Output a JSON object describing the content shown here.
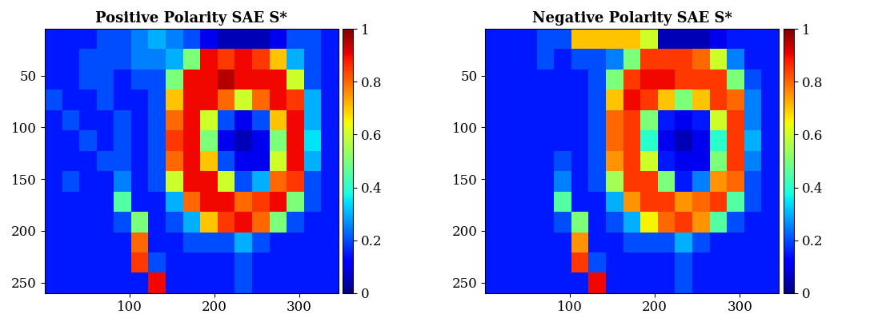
{
  "chart_data": [
    {
      "type": "heatmap",
      "title": "Positive Polarity SAE S*",
      "xlim": [
        0,
        346
      ],
      "ylim": [
        260,
        5
      ],
      "xticks": [
        100,
        200,
        300
      ],
      "yticks": [
        50,
        100,
        150,
        200,
        250
      ],
      "colorbar_range": [
        0,
        1
      ],
      "colorbar_ticks": [
        0,
        0.2,
        0.4,
        0.6,
        0.8,
        1
      ],
      "cells": [
        [
          0.15,
          0.15,
          0.15,
          0.2,
          0.2,
          0.25,
          0.3,
          0.25,
          0.2,
          0.1,
          0.05,
          0.05,
          0.05,
          0.1,
          0.2,
          0.2,
          0.15
        ],
        [
          0.15,
          0.15,
          0.2,
          0.2,
          0.2,
          0.25,
          0.25,
          0.3,
          0.5,
          0.9,
          0.85,
          0.9,
          0.85,
          0.7,
          0.3,
          0.2,
          0.15
        ],
        [
          0.15,
          0.15,
          0.2,
          0.2,
          0.15,
          0.2,
          0.2,
          0.5,
          0.9,
          0.9,
          0.95,
          0.9,
          0.9,
          0.9,
          0.6,
          0.2,
          0.15
        ],
        [
          0.2,
          0.15,
          0.15,
          0.2,
          0.15,
          0.15,
          0.2,
          0.7,
          0.9,
          0.9,
          0.8,
          0.6,
          0.8,
          0.9,
          0.85,
          0.3,
          0.15
        ],
        [
          0.15,
          0.2,
          0.15,
          0.15,
          0.2,
          0.15,
          0.2,
          0.8,
          0.9,
          0.6,
          0.2,
          0.1,
          0.2,
          0.7,
          0.9,
          0.3,
          0.15
        ],
        [
          0.15,
          0.15,
          0.2,
          0.15,
          0.2,
          0.15,
          0.2,
          0.85,
          0.9,
          0.5,
          0.1,
          0.05,
          0.1,
          0.5,
          0.9,
          0.35,
          0.15
        ],
        [
          0.15,
          0.15,
          0.15,
          0.2,
          0.2,
          0.15,
          0.2,
          0.8,
          0.9,
          0.7,
          0.2,
          0.1,
          0.1,
          0.6,
          0.9,
          0.3,
          0.15
        ],
        [
          0.15,
          0.2,
          0.15,
          0.15,
          0.25,
          0.15,
          0.2,
          0.6,
          0.9,
          0.9,
          0.6,
          0.2,
          0.3,
          0.8,
          0.85,
          0.2,
          0.15
        ],
        [
          0.15,
          0.15,
          0.15,
          0.15,
          0.45,
          0.15,
          0.15,
          0.3,
          0.8,
          0.9,
          0.9,
          0.8,
          0.85,
          0.9,
          0.5,
          0.2,
          0.15
        ],
        [
          0.15,
          0.15,
          0.15,
          0.15,
          0.2,
          0.5,
          0.15,
          0.2,
          0.3,
          0.7,
          0.85,
          0.9,
          0.8,
          0.5,
          0.2,
          0.15,
          0.15
        ],
        [
          0.15,
          0.15,
          0.15,
          0.15,
          0.15,
          0.8,
          0.15,
          0.15,
          0.2,
          0.2,
          0.2,
          0.3,
          0.2,
          0.15,
          0.15,
          0.15,
          0.15
        ],
        [
          0.15,
          0.15,
          0.15,
          0.15,
          0.15,
          0.85,
          0.2,
          0.15,
          0.15,
          0.15,
          0.15,
          0.2,
          0.15,
          0.15,
          0.15,
          0.15,
          0.15
        ],
        [
          0.15,
          0.15,
          0.15,
          0.15,
          0.15,
          0.15,
          0.9,
          0.15,
          0.15,
          0.15,
          0.15,
          0.2,
          0.15,
          0.15,
          0.15,
          0.15,
          0.15
        ]
      ]
    },
    {
      "type": "heatmap",
      "title": "Negative Polarity SAE S*",
      "xlim": [
        0,
        346
      ],
      "ylim": [
        260,
        5
      ],
      "xticks": [
        100,
        200,
        300
      ],
      "yticks": [
        50,
        100,
        150,
        200,
        250
      ],
      "colorbar_range": [
        0,
        1
      ],
      "colorbar_ticks": [
        0,
        0.2,
        0.4,
        0.6,
        0.8,
        1
      ],
      "cells": [
        [
          0.15,
          0.15,
          0.15,
          0.2,
          0.2,
          0.7,
          0.7,
          0.7,
          0.7,
          0.6,
          0.05,
          0.05,
          0.05,
          0.1,
          0.15,
          0.15,
          0.15
        ],
        [
          0.15,
          0.15,
          0.15,
          0.2,
          0.15,
          0.2,
          0.2,
          0.25,
          0.5,
          0.85,
          0.85,
          0.85,
          0.8,
          0.6,
          0.25,
          0.15,
          0.15
        ],
        [
          0.15,
          0.15,
          0.15,
          0.15,
          0.15,
          0.15,
          0.2,
          0.5,
          0.85,
          0.9,
          0.9,
          0.85,
          0.85,
          0.85,
          0.5,
          0.2,
          0.15
        ],
        [
          0.15,
          0.15,
          0.15,
          0.15,
          0.15,
          0.15,
          0.2,
          0.7,
          0.9,
          0.85,
          0.7,
          0.5,
          0.7,
          0.85,
          0.8,
          0.25,
          0.15
        ],
        [
          0.15,
          0.15,
          0.15,
          0.15,
          0.15,
          0.15,
          0.2,
          0.8,
          0.85,
          0.5,
          0.15,
          0.1,
          0.15,
          0.6,
          0.85,
          0.25,
          0.15
        ],
        [
          0.15,
          0.15,
          0.15,
          0.15,
          0.15,
          0.15,
          0.2,
          0.8,
          0.85,
          0.4,
          0.1,
          0.05,
          0.1,
          0.4,
          0.85,
          0.3,
          0.15
        ],
        [
          0.15,
          0.15,
          0.15,
          0.15,
          0.2,
          0.15,
          0.2,
          0.75,
          0.85,
          0.6,
          0.15,
          0.1,
          0.1,
          0.5,
          0.85,
          0.25,
          0.15
        ],
        [
          0.15,
          0.15,
          0.15,
          0.15,
          0.25,
          0.15,
          0.2,
          0.55,
          0.85,
          0.85,
          0.5,
          0.15,
          0.25,
          0.75,
          0.8,
          0.2,
          0.15
        ],
        [
          0.15,
          0.15,
          0.15,
          0.15,
          0.45,
          0.15,
          0.15,
          0.3,
          0.75,
          0.85,
          0.85,
          0.75,
          0.8,
          0.85,
          0.45,
          0.2,
          0.15
        ],
        [
          0.15,
          0.15,
          0.15,
          0.15,
          0.2,
          0.5,
          0.15,
          0.2,
          0.3,
          0.65,
          0.8,
          0.85,
          0.75,
          0.45,
          0.2,
          0.15,
          0.15
        ],
        [
          0.15,
          0.15,
          0.15,
          0.15,
          0.15,
          0.75,
          0.15,
          0.15,
          0.2,
          0.2,
          0.2,
          0.3,
          0.2,
          0.15,
          0.15,
          0.15,
          0.15
        ],
        [
          0.15,
          0.15,
          0.15,
          0.15,
          0.15,
          0.85,
          0.2,
          0.15,
          0.15,
          0.15,
          0.15,
          0.2,
          0.15,
          0.15,
          0.15,
          0.15,
          0.15
        ],
        [
          0.15,
          0.15,
          0.15,
          0.15,
          0.15,
          0.15,
          0.9,
          0.15,
          0.15,
          0.15,
          0.15,
          0.2,
          0.15,
          0.15,
          0.15,
          0.15,
          0.15
        ]
      ]
    }
  ]
}
